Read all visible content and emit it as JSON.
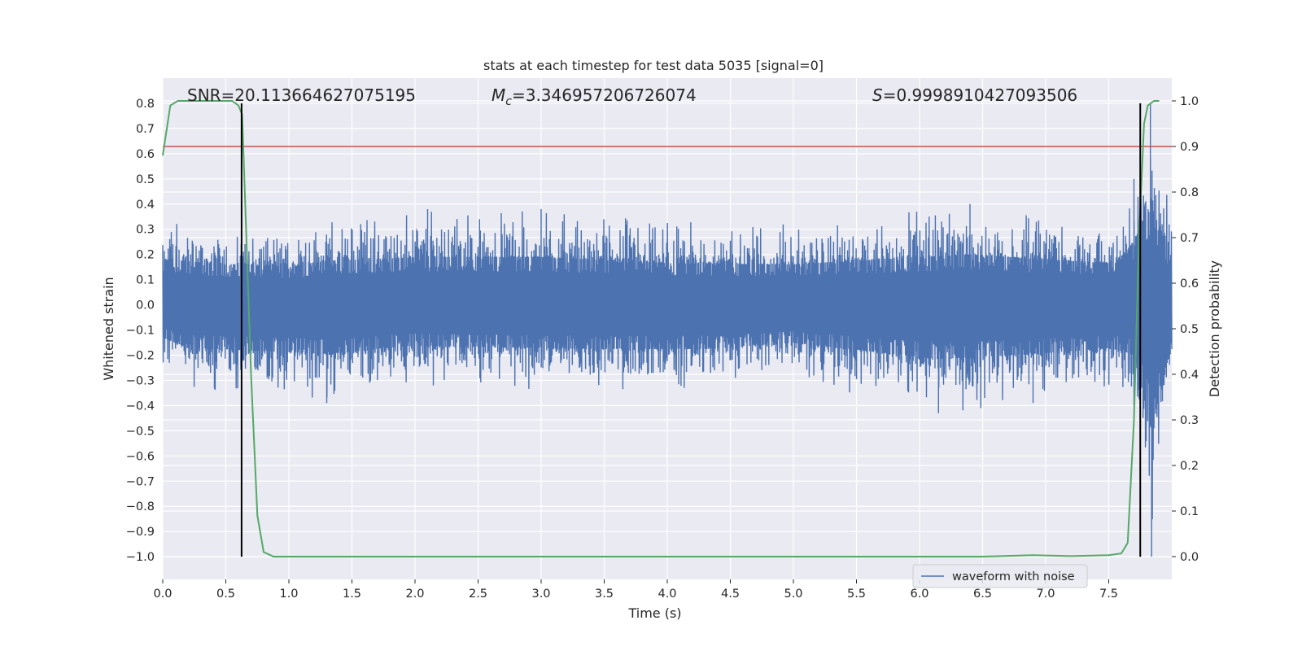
{
  "chart_data": {
    "type": "line",
    "title": "stats at each timestep for test data 5035 [signal=0]",
    "xlabel": "Time (s)",
    "ylabel": "Whitened strain",
    "y2label": "Detection probability",
    "xlim": [
      0.0,
      8.0
    ],
    "ylim": [
      -1.09,
      0.9
    ],
    "y2lim": [
      -0.05,
      1.05
    ],
    "grid": true,
    "x_ticks": [
      0.0,
      0.5,
      1.0,
      1.5,
      2.0,
      2.5,
      3.0,
      3.5,
      4.0,
      4.5,
      5.0,
      5.5,
      6.0,
      6.5,
      7.0,
      7.5
    ],
    "x_tick_labels": [
      "0.0",
      "0.5",
      "1.0",
      "1.5",
      "2.0",
      "2.5",
      "3.0",
      "3.5",
      "4.0",
      "4.5",
      "5.0",
      "5.5",
      "6.0",
      "6.5",
      "7.0",
      "7.5"
    ],
    "y_ticks": [
      0.8,
      0.7,
      0.6,
      0.5,
      0.4,
      0.3,
      0.2,
      0.1,
      0.0,
      -0.1,
      -0.2,
      -0.3,
      -0.4,
      -0.5,
      -0.6,
      -0.7,
      -0.8,
      -0.9,
      -1.0
    ],
    "y_tick_labels": [
      "0.8",
      "0.7",
      "0.6",
      "0.5",
      "0.4",
      "0.3",
      "0.2",
      "0.1",
      "0.0",
      "−0.1",
      "−0.2",
      "−0.3",
      "−0.4",
      "−0.5",
      "−0.6",
      "−0.7",
      "−0.8",
      "−0.9",
      "−1.0"
    ],
    "y2_ticks": [
      1.0,
      0.9,
      0.8,
      0.7,
      0.6,
      0.5,
      0.4,
      0.3,
      0.2,
      0.1,
      0.0
    ],
    "y2_tick_labels": [
      "1.0",
      "0.9",
      "0.8",
      "0.7",
      "0.6",
      "0.5",
      "0.4",
      "0.3",
      "0.2",
      "0.1",
      "0.0"
    ],
    "annotations": {
      "snr": "SNR=20.113664627075195",
      "mc_symbol": "M",
      "mc_sub": "c",
      "mc_value": "=3.346957206726074",
      "s_symbol": "S",
      "s_value": "=0.9998910427093506"
    },
    "legend": {
      "entries": [
        "waveform with noise"
      ],
      "placement": "lower-right"
    },
    "series": [
      {
        "name": "waveform with noise",
        "axis": "left",
        "color": "#4c72b0",
        "kind": "noise",
        "envelope_pos": [
          [
            0.0,
            0.36
          ],
          [
            0.5,
            0.32
          ],
          [
            1.0,
            0.3
          ],
          [
            1.3,
            0.35
          ],
          [
            2.1,
            0.38
          ],
          [
            3.0,
            0.38
          ],
          [
            4.0,
            0.33
          ],
          [
            5.0,
            0.32
          ],
          [
            5.5,
            0.35
          ],
          [
            6.4,
            0.4
          ],
          [
            7.0,
            0.36
          ],
          [
            7.55,
            0.33
          ],
          [
            7.7,
            0.5
          ],
          [
            7.83,
            0.8
          ],
          [
            8.0,
            0.37
          ]
        ],
        "envelope_neg": [
          [
            0.0,
            -0.26
          ],
          [
            0.2,
            -0.34
          ],
          [
            0.9,
            -0.37
          ],
          [
            1.3,
            -0.39
          ],
          [
            2.0,
            -0.32
          ],
          [
            3.3,
            -0.35
          ],
          [
            4.3,
            -0.35
          ],
          [
            5.0,
            -0.3
          ],
          [
            6.15,
            -0.43
          ],
          [
            6.9,
            -0.39
          ],
          [
            7.55,
            -0.34
          ],
          [
            7.7,
            -0.4
          ],
          [
            7.84,
            -1.0
          ],
          [
            8.0,
            -0.3
          ]
        ]
      },
      {
        "name": "",
        "axis": "right",
        "color": "#55a868",
        "x": [
          0.0,
          0.06,
          0.12,
          0.2,
          0.3,
          0.4,
          0.5,
          0.55,
          0.6,
          0.63,
          0.7,
          0.75,
          0.8,
          0.88,
          1.0,
          1.5,
          2.0,
          3.0,
          4.0,
          5.0,
          6.0,
          6.5,
          6.9,
          7.2,
          7.5,
          7.6,
          7.65,
          7.7,
          7.74,
          7.78,
          7.81,
          7.86,
          7.9
        ],
        "y": [
          0.88,
          0.99,
          1.0,
          1.0,
          1.0,
          1.0,
          1.0,
          1.0,
          0.99,
          0.97,
          0.4,
          0.09,
          0.01,
          0.0,
          0.0,
          0.0,
          0.0,
          0.0,
          0.0,
          0.0,
          0.0,
          0.0,
          0.003,
          0.001,
          0.003,
          0.007,
          0.03,
          0.3,
          0.7,
          0.95,
          0.99,
          1.0,
          1.0
        ]
      }
    ],
    "threshold_line": {
      "axis": "right",
      "value": 0.9,
      "color": "#c44e52"
    },
    "vertical_lines": {
      "x": [
        0.625,
        7.75
      ],
      "color": "#000000",
      "y_range": [
        -1.0,
        0.8
      ]
    }
  }
}
